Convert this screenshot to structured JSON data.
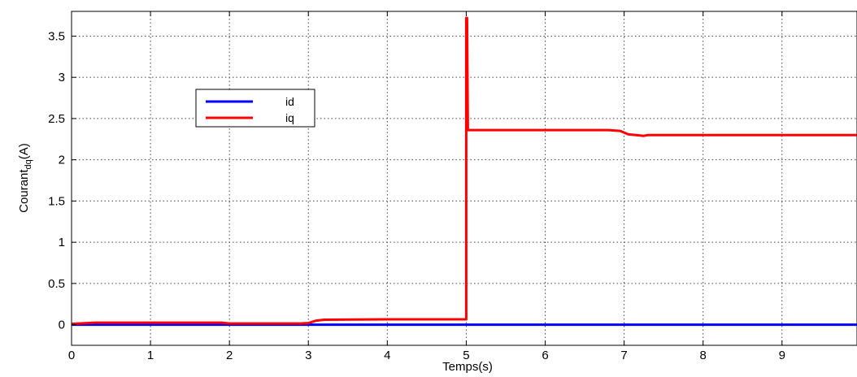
{
  "chart_data": {
    "type": "line",
    "title": "",
    "xlabel": "Temps(s)",
    "ylabel": "Courant",
    "ylabel_sub": "dq",
    "ylabel_unit": "(A)",
    "xlim": [
      0,
      9.95
    ],
    "ylim": [
      -0.25,
      3.8
    ],
    "xticks": [
      0,
      1,
      2,
      3,
      4,
      5,
      6,
      7,
      8,
      9
    ],
    "yticks": [
      0,
      0.5,
      1,
      1.5,
      2,
      2.5,
      3,
      3.5
    ],
    "xtick_labels": [
      "0",
      "1",
      "2",
      "3",
      "4",
      "5",
      "6",
      "7",
      "8",
      "9"
    ],
    "ytick_labels": [
      "0",
      "0.5",
      "1",
      "1.5",
      "2",
      "2.5",
      "3",
      "3.5"
    ],
    "grid": true,
    "legend_position": "upper-left",
    "series": [
      {
        "name": "id",
        "color": "#0000ff",
        "x": [
          0,
          9.95
        ],
        "y": [
          0,
          0
        ]
      },
      {
        "name": "iq",
        "color": "#ff0000",
        "x": [
          0,
          0.1,
          0.3,
          1.0,
          1.9,
          2.0,
          2.9,
          3.0,
          3.1,
          3.2,
          4.0,
          4.97,
          5.0,
          5.0,
          5.01,
          5.02,
          5.5,
          6.8,
          6.95,
          7.05,
          7.15,
          7.25,
          7.3,
          7.5,
          8.5,
          9.95
        ],
        "y": [
          0.01,
          0.015,
          0.025,
          0.025,
          0.025,
          0.015,
          0.015,
          0.02,
          0.05,
          0.06,
          0.065,
          0.065,
          0.065,
          3.72,
          3.72,
          2.36,
          2.36,
          2.36,
          2.35,
          2.31,
          2.3,
          2.29,
          2.3,
          2.3,
          2.3,
          2.3
        ]
      }
    ]
  }
}
